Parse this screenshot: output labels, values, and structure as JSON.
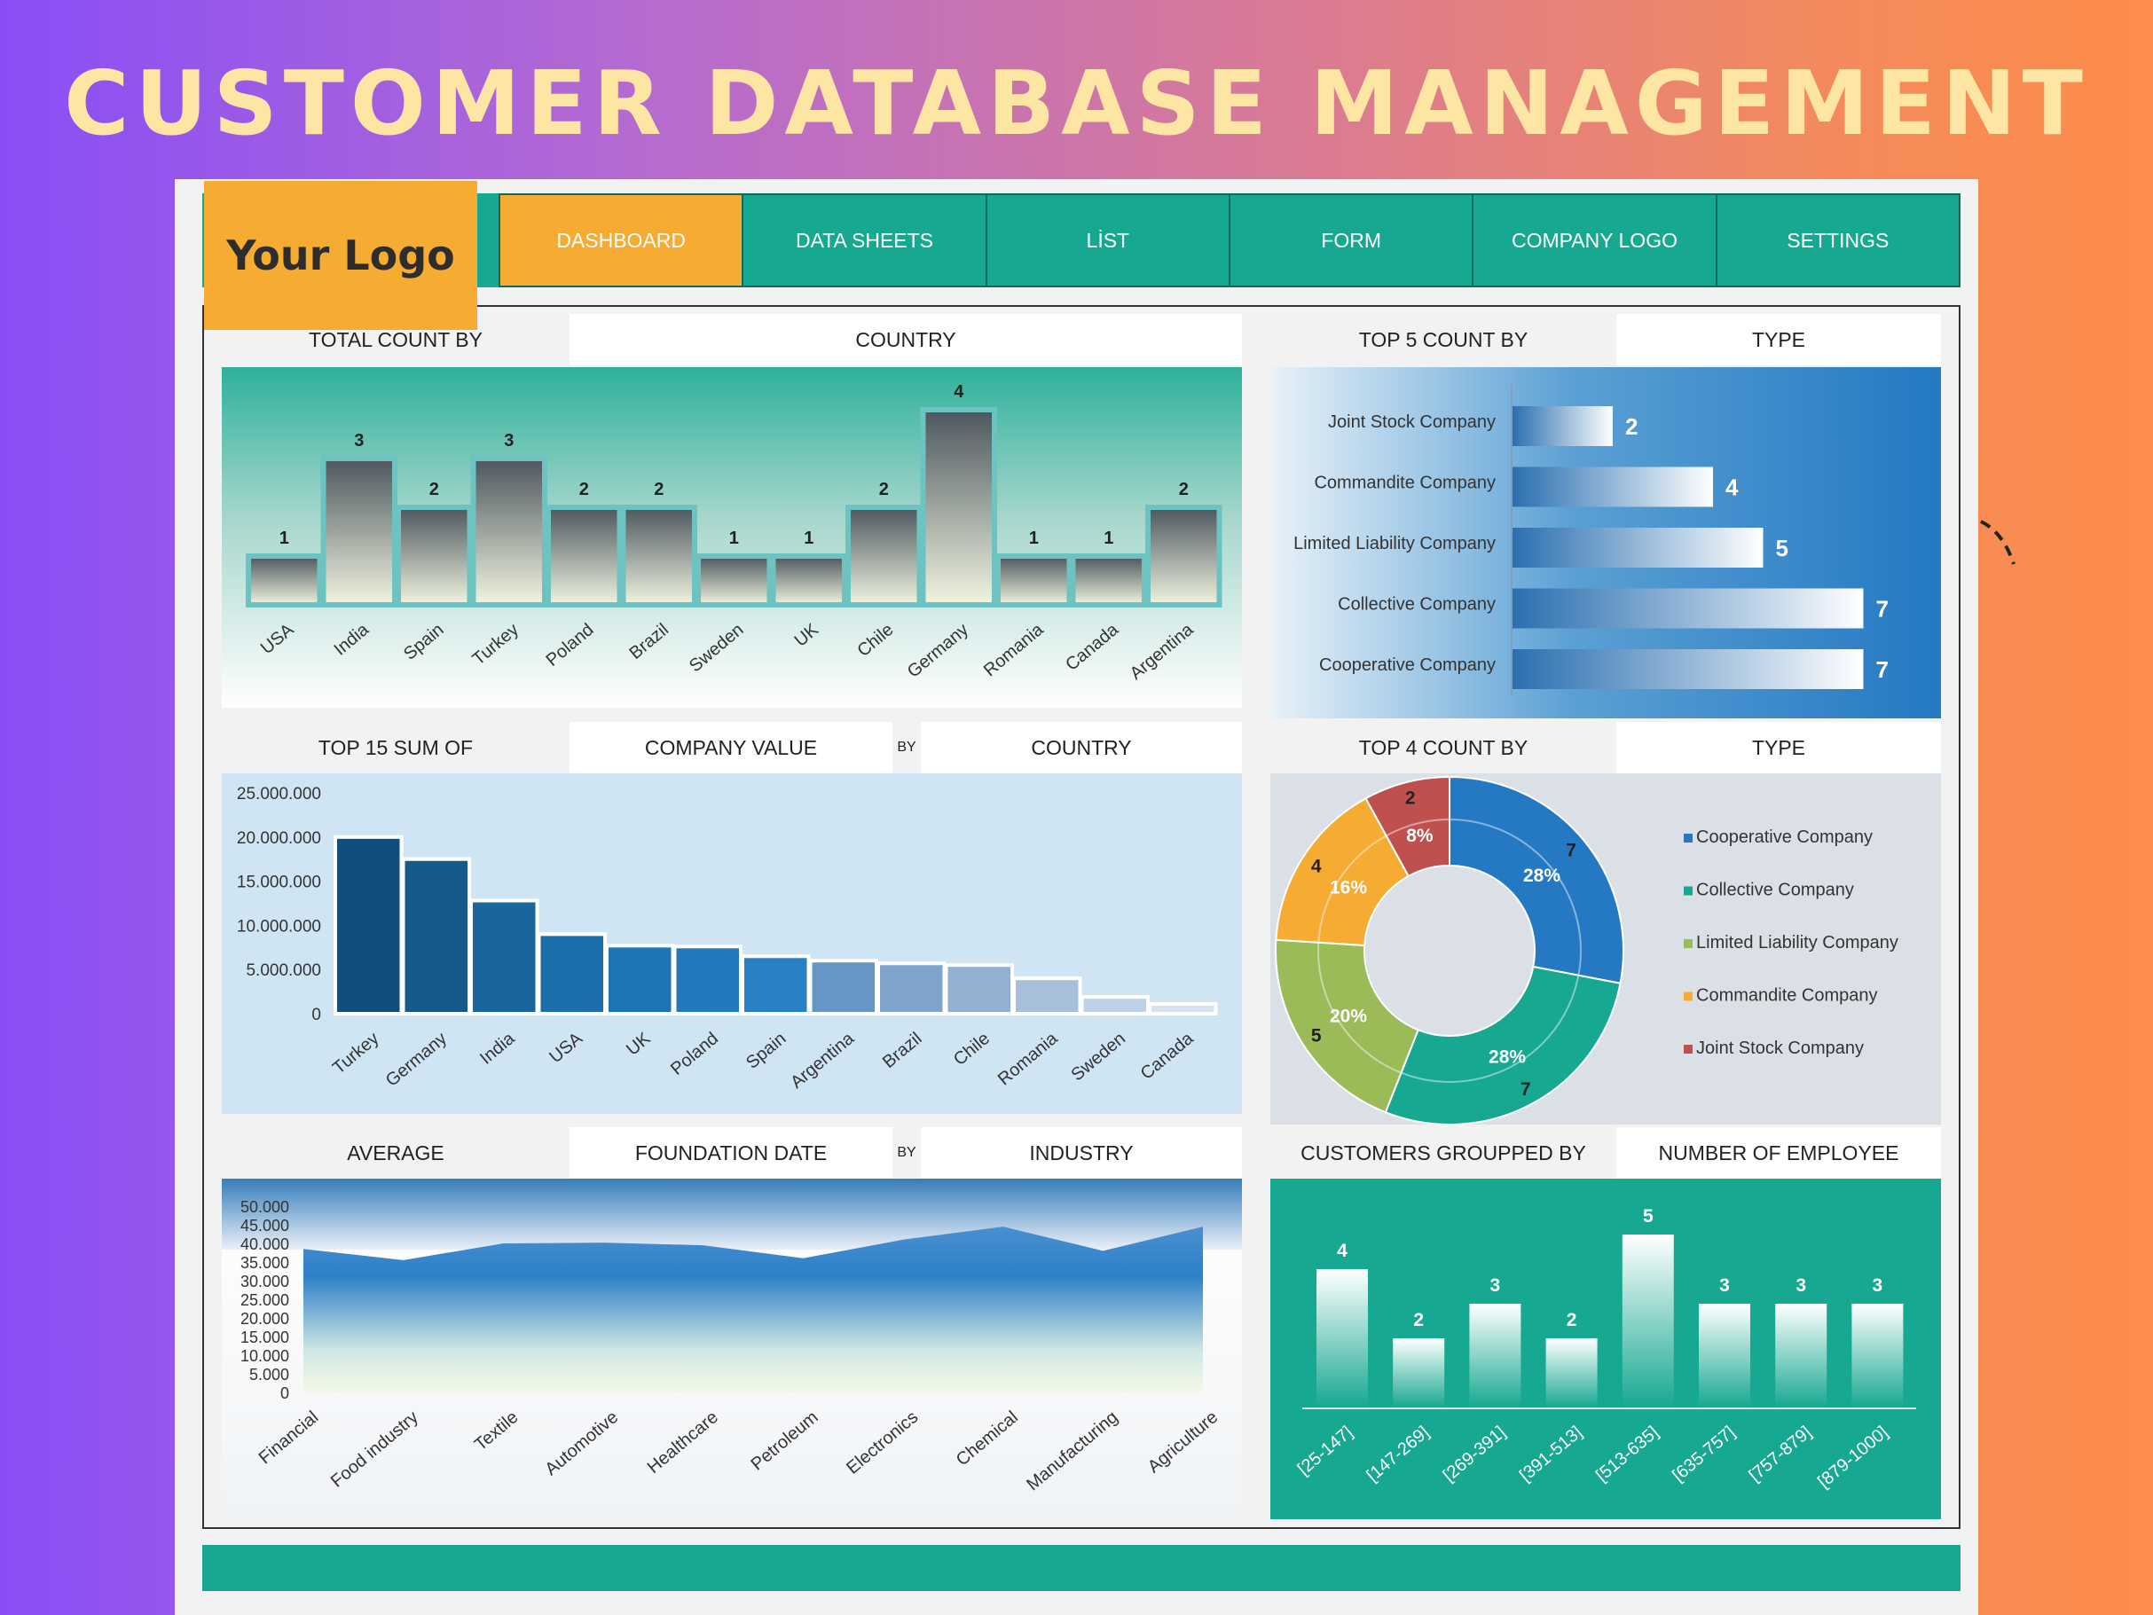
{
  "header": {
    "title": "CUSTOMER DATABASE MANAGEMENT"
  },
  "logo": {
    "text": "Your Logo"
  },
  "nav": {
    "tabs": [
      {
        "label": "DASHBOARD",
        "active": true
      },
      {
        "label": "DATA SHEETS"
      },
      {
        "label": "LİST"
      },
      {
        "label": "FORM"
      },
      {
        "label": "COMPANY LOGO"
      },
      {
        "label": "SETTINGS"
      }
    ]
  },
  "panels": {
    "country_count": {
      "title_left": "TOTAL COUNT BY",
      "title_right": "COUNTRY"
    },
    "type_top5": {
      "title_left": "TOP 5 COUNT BY",
      "title_right": "TYPE"
    },
    "company_value": {
      "title_left": "TOP 15 SUM OF",
      "title_mid": "COMPANY VALUE",
      "by": "BY",
      "title_right": "COUNTRY"
    },
    "type_top4": {
      "title_left": "TOP 4 COUNT BY",
      "title_right": "TYPE"
    },
    "foundation": {
      "title_left": "AVERAGE",
      "title_mid": "FOUNDATION DATE",
      "by": "BY",
      "title_right": "INDUSTRY"
    },
    "employees": {
      "title_left": "CUSTOMERS GROUPPED BY",
      "title_right": "NUMBER OF EMPLOYEE"
    }
  },
  "colors": {
    "teal": "#17a891",
    "orange": "#f6ab33",
    "blue": "#2a7dc4"
  },
  "chart_data": [
    {
      "type": "bar",
      "categories": [
        "USA",
        "India",
        "Spain",
        "Turkey",
        "Poland",
        "Brazil",
        "Sweden",
        "UK",
        "Chile",
        "Germany",
        "Romania",
        "Canada",
        "Argentina"
      ],
      "values": [
        1,
        3,
        2,
        3,
        2,
        2,
        1,
        1,
        2,
        4,
        1,
        1,
        2
      ]
    },
    {
      "type": "bar",
      "orientation": "horizontal",
      "categories": [
        "Joint Stock Company",
        "Commandite Company",
        "Limited Liability Company",
        "Collective Company",
        "Cooperative Company"
      ],
      "values": [
        2,
        4,
        5,
        7,
        7
      ]
    },
    {
      "type": "bar",
      "categories": [
        "Turkey",
        "Germany",
        "India",
        "USA",
        "UK",
        "Poland",
        "Spain",
        "Argentina",
        "Brazil",
        "Chile",
        "Romania",
        "Sweden",
        "Canada"
      ],
      "values": [
        20000000,
        17500000,
        12800000,
        9000000,
        7700000,
        7600000,
        6500000,
        6000000,
        5700000,
        5500000,
        4000000,
        1900000,
        1100000
      ],
      "yticks": [
        "25.000.000",
        "20.000.000",
        "15.000.000",
        "10.000.000",
        "5.000.000",
        "0"
      ],
      "ylim": [
        0,
        25000000
      ]
    },
    {
      "type": "pie",
      "donut": true,
      "labels": [
        "Cooperative Company",
        "Collective Company",
        "Limited Liability Company",
        "Commandite Company",
        "Joint Stock Company"
      ],
      "values": [
        7,
        7,
        5,
        4,
        2
      ],
      "percent_labels": [
        "28%",
        "28%",
        "20%",
        "16%",
        "8%"
      ],
      "colors": [
        "#2479c2",
        "#17a891",
        "#9bbb59",
        "#f6ab33",
        "#c0504d"
      ]
    },
    {
      "type": "area",
      "categories": [
        "Financial",
        "Food industry",
        "Textile",
        "Automotive",
        "Healthcare",
        "Petroleum",
        "Electronics",
        "Chemical",
        "Manufacturing",
        "Agriculture"
      ],
      "values": [
        38500,
        35500,
        40000,
        40200,
        39500,
        36000,
        41000,
        44500,
        38000,
        44500
      ],
      "yticks": [
        "50.000",
        "45.000",
        "40.000",
        "35.000",
        "30.000",
        "25.000",
        "20.000",
        "15.000",
        "10.000",
        "5.000",
        "0"
      ],
      "ylim": [
        0,
        50000
      ]
    },
    {
      "type": "bar",
      "categories": [
        "[25-147]",
        "[147-269]",
        "[269-391]",
        "[391-513]",
        "[513-635]",
        "[635-757]",
        "[757-879]",
        "[879-1000]"
      ],
      "values": [
        4,
        2,
        3,
        2,
        5,
        3,
        3,
        3
      ]
    }
  ]
}
